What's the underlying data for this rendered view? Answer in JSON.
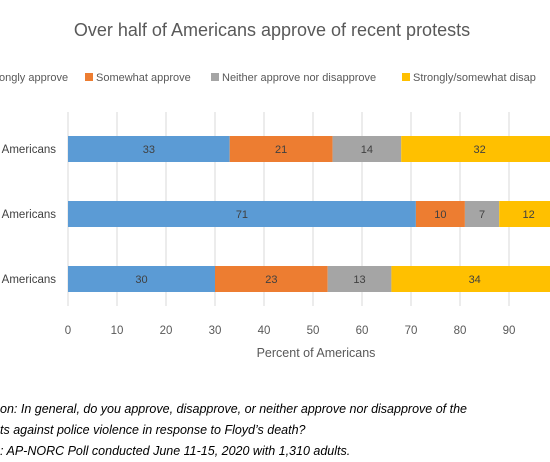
{
  "chart_data": {
    "type": "bar",
    "orientation": "horizontal",
    "stacked": true,
    "title": "Over half of Americans approve of recent protests",
    "categories": [
      "Americans",
      "Americans",
      "Americans"
    ],
    "series": [
      {
        "name": "ongly approve",
        "color": "#5b9bd5",
        "values": [
          33,
          71,
          30
        ]
      },
      {
        "name": "Somewhat approve",
        "color": "#ed7d31",
        "values": [
          21,
          10,
          23
        ]
      },
      {
        "name": "Neither approve nor disapprove",
        "color": "#a5a5a5",
        "values": [
          14,
          7,
          13
        ]
      },
      {
        "name": "Strongly/somewhat disap",
        "color": "#ffc000",
        "values": [
          32,
          12,
          34
        ]
      }
    ],
    "xlabel": "Percent of Americans",
    "xlim": [
      0,
      100
    ],
    "xticks": [
      "0",
      "10",
      "20",
      "30",
      "40",
      "50",
      "60",
      "70",
      "80",
      "90"
    ],
    "legend_position": "top",
    "grid": "vertical"
  },
  "notes": [
    "on: In general, do you approve, disapprove, or neither approve nor disapprove of the",
    "ts against police violence in response to Floyd’s death?",
    ": AP-NORC Poll conducted June 11-15, 2020 with 1,310 adults."
  ]
}
